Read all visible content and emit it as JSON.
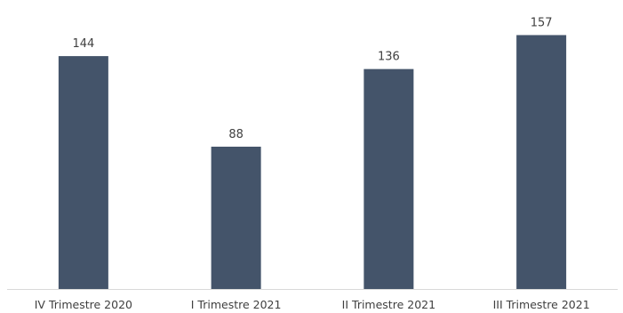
{
  "chart_data": {
    "type": "bar",
    "categories": [
      "IV Trimestre 2020",
      "I Trimestre 2021",
      "II Trimestre 2021",
      "III Trimestre 2021"
    ],
    "values": [
      144,
      88,
      136,
      157
    ],
    "data_labels": [
      "144",
      "88",
      "136",
      "157"
    ],
    "ylim": [
      0,
      160
    ],
    "grid": false,
    "legend": "none",
    "bar_color": "#44546a",
    "axis_color": "#d9d9d9",
    "text_color": "#404040"
  }
}
